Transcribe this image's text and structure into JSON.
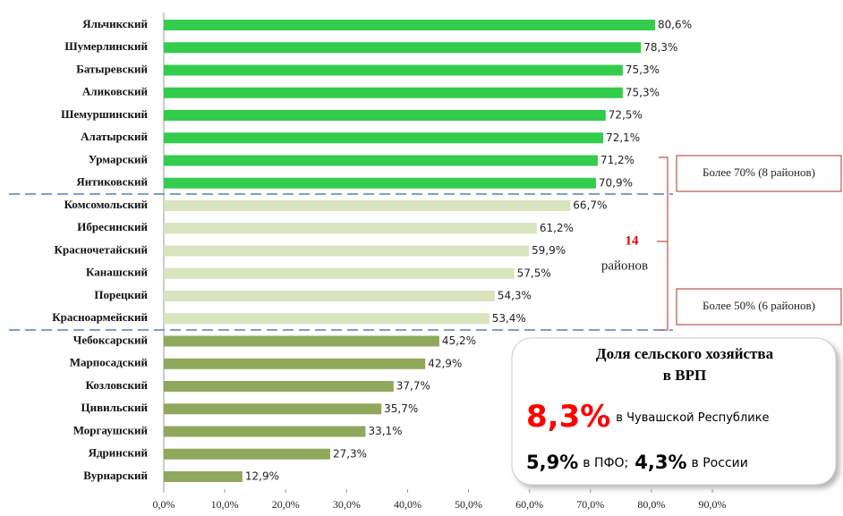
{
  "chart_data": {
    "type": "bar",
    "orientation": "horizontal",
    "categories": [
      "Яльчикский",
      "Шумерлинский",
      "Батыревский",
      "Аликовский",
      "Шемуршинский",
      "Алатырский",
      "Урмарский",
      "Янтиковский",
      "Комсомольский",
      "Ибресинский",
      "Красночетайский",
      "Канашский",
      "Порецкий",
      "Красноармейский",
      "Чебоксарский",
      "Марпосадский",
      "Козловский",
      "Цивильский",
      "Моргаушский",
      "Ядринский",
      "Вурнарский"
    ],
    "values": [
      80.6,
      78.3,
      75.3,
      75.3,
      72.5,
      72.1,
      71.2,
      70.9,
      66.7,
      61.2,
      59.9,
      57.5,
      54.3,
      53.4,
      45.2,
      42.9,
      37.7,
      35.7,
      33.1,
      27.3,
      12.9
    ],
    "value_labels": [
      "80,6%",
      "78,3%",
      "75,3%",
      "75,3%",
      "72,5%",
      "72,1%",
      "71,2%",
      "70,9%",
      "66,7%",
      "61,2%",
      "59,9%",
      "57,5%",
      "54,3%",
      "53,4%",
      "45,2%",
      "42,9%",
      "37,7%",
      "35,7%",
      "33,1%",
      "27,3%",
      "12,9%"
    ],
    "colors": [
      "#33cc4c",
      "#33cc4c",
      "#33cc4c",
      "#33cc4c",
      "#33cc4c",
      "#33cc4c",
      "#33cc4c",
      "#33cc4c",
      "#d7e4bd",
      "#d7e4bd",
      "#d7e4bd",
      "#d7e4bd",
      "#d7e4bd",
      "#d7e4bd",
      "#8fa85c",
      "#8fa85c",
      "#8fa85c",
      "#8fa85c",
      "#8fa85c",
      "#8fa85c",
      "#8fa85c"
    ],
    "xlim": [
      0,
      90
    ],
    "xticks": [
      {
        "value": 0,
        "label": "0,0%"
      },
      {
        "value": 10,
        "label": "10,0%"
      },
      {
        "value": 20,
        "label": "20,0%"
      },
      {
        "value": 30,
        "label": "30,0%"
      },
      {
        "value": 40,
        "label": "40,0%"
      },
      {
        "value": 50,
        "label": "50,0%"
      },
      {
        "value": 60,
        "label": "60,0%"
      },
      {
        "value": 70,
        "label": "70,0%"
      },
      {
        "value": 80,
        "label": "80,0%"
      },
      {
        "value": 90,
        "label": "90,0%"
      }
    ],
    "annotations": {
      "group_70": "Более 70% (8 районов)",
      "group_50": "Более 50% (6 районов)",
      "count": "14",
      "count_unit": "районов",
      "info": {
        "title_1": "Доля сельского хозяйства",
        "title_2": "в ВРП",
        "main_value": "8,3%",
        "main_text": "в Чувашской Республике",
        "pfo_value": "5,9%",
        "pfo_text": "в ПФО;",
        "russia_value": "4,3%",
        "russia_text": "в России"
      }
    }
  }
}
